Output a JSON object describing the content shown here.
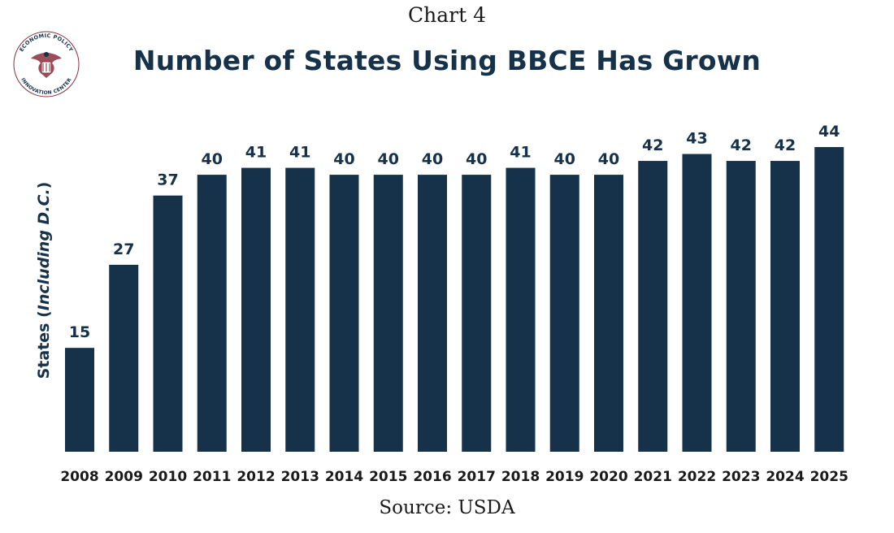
{
  "header": {
    "chart_label": "Chart 4",
    "logo_text_top": "ECONOMIC POLICY",
    "logo_text_bottom": "INNOVATION CENTER"
  },
  "chart_data": {
    "type": "bar",
    "title": "Number of States Using BBCE Has Grown",
    "ylabel": "States (Including D.C.)",
    "ylabel_plain": "States (",
    "ylabel_italic": "Including D.C.",
    "ylabel_close": ")",
    "xlabel": "",
    "categories": [
      "2008",
      "2009",
      "2010",
      "2011",
      "2012",
      "2013",
      "2014",
      "2015",
      "2016",
      "2017",
      "2018",
      "2019",
      "2020",
      "2021",
      "2022",
      "2023",
      "2024",
      "2025"
    ],
    "values": [
      15,
      27,
      37,
      40,
      41,
      41,
      40,
      40,
      40,
      40,
      41,
      40,
      40,
      42,
      43,
      42,
      42,
      44
    ],
    "ylim": [
      0,
      44
    ],
    "grid": false,
    "legend": "none",
    "bar_color": "#15324a",
    "label_color": "#15324a"
  },
  "footer": {
    "source": "Source: USDA"
  }
}
